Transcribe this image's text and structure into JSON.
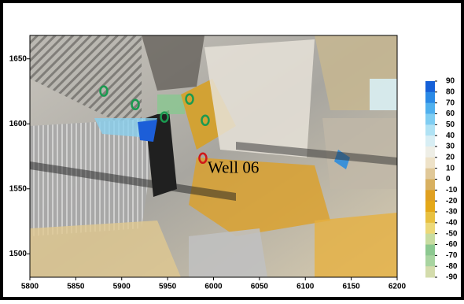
{
  "map": {
    "xlim": [
      5800,
      6200
    ],
    "ylim": [
      1482,
      1668
    ],
    "xticks": [
      5800,
      5850,
      5900,
      5950,
      6000,
      6050,
      6100,
      6150,
      6200
    ],
    "yticks": [
      1500,
      1550,
      1600,
      1650
    ],
    "colorbar": {
      "ticks": [
        90,
        80,
        70,
        60,
        50,
        40,
        30,
        20,
        10,
        0,
        -10,
        -20,
        -30,
        -40,
        -50,
        -60,
        -70,
        -80,
        -90
      ],
      "colors": [
        "#1560d8",
        "#2a8ae6",
        "#4fb0ee",
        "#7fcdf2",
        "#b0e2f4",
        "#d8eef4",
        "#eeeee6",
        "#eee2c8",
        "#e0c898",
        "#d8b060",
        "#e0a020",
        "#e4a818",
        "#e8c040",
        "#ecd878",
        "#c8dca0",
        "#8cc890",
        "#a8d4a0",
        "#d4dcac"
      ]
    },
    "wells": [
      {
        "x": 5880.5,
        "y": 1625.2,
        "color": "#1a9a50"
      },
      {
        "x": 5914.8,
        "y": 1614.8,
        "color": "#1a9a50"
      },
      {
        "x": 5946.5,
        "y": 1605.2,
        "color": "#1a9a50"
      },
      {
        "x": 5973.9,
        "y": 1619.1,
        "color": "#1a9a50"
      },
      {
        "x": 5991.0,
        "y": 1602.7,
        "color": "#1a9a50"
      },
      {
        "x": 5988.4,
        "y": 1573.6,
        "color": "#d01818",
        "label": "Well 06"
      }
    ]
  }
}
